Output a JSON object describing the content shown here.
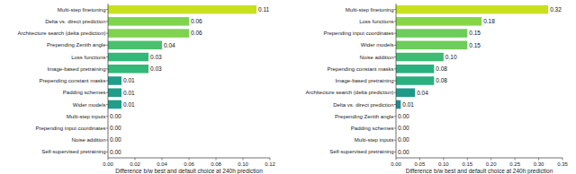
{
  "chart_data": [
    {
      "type": "bar",
      "orientation": "horizontal",
      "data_labels": true,
      "categories": [
        "Multi-step finetuning",
        "Delta vs. direct prediction",
        "Architecture search (delta prediction)",
        "Prepending Zenith angle",
        "Loss functions",
        "Image-based pretraining",
        "Prepending constant masks",
        "Padding schemes",
        "Wider models",
        "Multi-step inputs",
        "Prepending input coordinates",
        "Noise addition",
        "Self-supervised pretraining"
      ],
      "values": [
        0.11,
        0.06,
        0.06,
        0.04,
        0.03,
        0.03,
        0.01,
        0.01,
        0.01,
        0,
        0,
        0,
        0
      ],
      "value_labels": [
        "0.11",
        "0.06",
        "0.06",
        "0.04",
        "0.03",
        "0.03",
        "0.01",
        "0.01",
        "0.01",
        "0.00",
        "0.00",
        "0.00",
        "0.00"
      ],
      "colors": [
        "#c8e020",
        "#7fd34e",
        "#7fd34e",
        "#4ac16d",
        "#35b779",
        "#35b779",
        "#1f9e89",
        "#1f9e89",
        "#1f9e89",
        "#25858e",
        "#25858e",
        "#25858e",
        "#25858e"
      ],
      "xlim": [
        0,
        0.12
      ],
      "xticks": [
        {
          "value": 0,
          "label": "0.00"
        },
        {
          "value": 0.02,
          "label": "0.02"
        },
        {
          "value": 0.04,
          "label": "0.04"
        },
        {
          "value": 0.06,
          "label": "0.06"
        },
        {
          "value": 0.08,
          "label": "0.08"
        },
        {
          "value": 0.1,
          "label": "0.10"
        },
        {
          "value": 0.12,
          "label": "0.12"
        }
      ],
      "xlabel": "Difference b/w best and default choice at 240h prediction"
    },
    {
      "type": "bar",
      "orientation": "horizontal",
      "data_labels": true,
      "categories": [
        "Multi-step finetuning",
        "Loss functions",
        "Prepending input coordinates",
        "Wider models",
        "Noise addition",
        "Prepending constant masks",
        "Image-based pretraining",
        "Architecture search (delta prediction)",
        "Delta vs. direct prediction",
        "Prepending Zenith angle",
        "Padding schemes",
        "Multi-step inputs",
        "Self-supervised pretraining"
      ],
      "values": [
        0.32,
        0.18,
        0.15,
        0.15,
        0.1,
        0.08,
        0.08,
        0.04,
        0.01,
        0,
        0,
        0,
        0
      ],
      "value_labels": [
        "0.32",
        "0.18",
        "0.15",
        "0.15",
        "0.10",
        "0.08",
        "0.08",
        "0.04",
        "0.01",
        "0.00",
        "0.00",
        "0.00",
        "0.00"
      ],
      "colors": [
        "#c8e020",
        "#86d549",
        "#6ccd5a",
        "#6ccd5a",
        "#3fbc73",
        "#2ab07f",
        "#2ab07f",
        "#1f9a8a",
        "#228c8d",
        "#25858e",
        "#25858e",
        "#25858e",
        "#25858e"
      ],
      "xlim": [
        0,
        0.35
      ],
      "xticks": [
        {
          "value": 0,
          "label": "0.00"
        },
        {
          "value": 0.05,
          "label": "0.05"
        },
        {
          "value": 0.1,
          "label": "0.10"
        },
        {
          "value": 0.15,
          "label": "0.15"
        },
        {
          "value": 0.2,
          "label": "0.20"
        },
        {
          "value": 0.25,
          "label": "0.25"
        },
        {
          "value": 0.3,
          "label": "0.30"
        },
        {
          "value": 0.35,
          "label": "0.35"
        }
      ],
      "xlabel": "Difference b/w best and default choice at 240h prediction"
    }
  ]
}
